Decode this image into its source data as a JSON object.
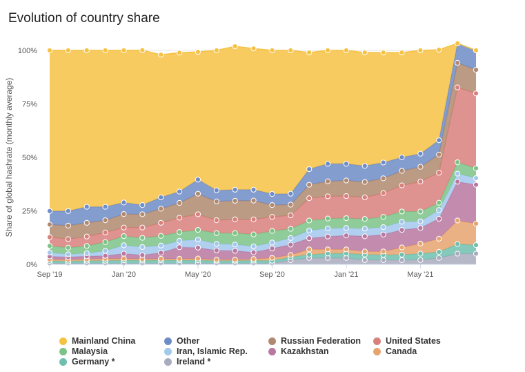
{
  "title": "Evolution of country share",
  "chart_data": {
    "type": "area",
    "stacked": true,
    "title": "Evolution of country share",
    "ylabel": "Share of global hashrate (monthly average)",
    "xlabel": "",
    "ylim": [
      0,
      100
    ],
    "y_ticks": [
      "0%",
      "25%",
      "50%",
      "75%",
      "100%"
    ],
    "x_ticks": [
      "Sep '19",
      "Jan '20",
      "May '20",
      "Sep '20",
      "Jan '21",
      "May '21"
    ],
    "x": [
      "2019-09",
      "2019-10",
      "2019-11",
      "2019-12",
      "2020-01",
      "2020-02",
      "2020-03",
      "2020-04",
      "2020-05",
      "2020-06",
      "2020-07",
      "2020-08",
      "2020-09",
      "2020-10",
      "2020-11",
      "2020-12",
      "2021-01",
      "2021-02",
      "2021-03",
      "2021-04",
      "2021-05",
      "2021-06",
      "2021-07",
      "2021-08"
    ],
    "grid": true,
    "legend_position": "bottom",
    "series": [
      {
        "name": "Ireland *",
        "color": "#a9abbe",
        "values": [
          0.5,
          0.5,
          0.5,
          0.5,
          0.5,
          0.5,
          0.5,
          0.5,
          0.5,
          0.5,
          0.5,
          0.5,
          0.5,
          2,
          3,
          3,
          3,
          2,
          2,
          2,
          2,
          3,
          5,
          5
        ]
      },
      {
        "name": "Germany *",
        "color": "#6fbfae",
        "values": [
          1.1,
          0.9,
          1.2,
          1.2,
          1.4,
          1.3,
          1.4,
          1.4,
          1.4,
          1.2,
          1.2,
          1.3,
          1.2,
          1.4,
          1.5,
          2.1,
          2.1,
          2.6,
          2.4,
          2.5,
          3,
          2.8,
          4.5,
          4
        ]
      },
      {
        "name": "Canada",
        "color": "#e6a46f",
        "values": [
          0.7,
          0.7,
          0.7,
          0.9,
          0.8,
          0.7,
          0.7,
          0.7,
          0.8,
          0.5,
          0.5,
          0.7,
          1.3,
          1.0,
          2.5,
          1.9,
          1.9,
          1.4,
          1.6,
          3.4,
          4.7,
          6.2,
          11,
          10
        ]
      },
      {
        "name": "Kazakhstan",
        "color": "#b878a1",
        "values": [
          1.4,
          1.3,
          1.4,
          1.4,
          2.3,
          1.8,
          2.8,
          5.4,
          5.1,
          4.3,
          4.1,
          3.1,
          4.4,
          4.8,
          5.2,
          6.0,
          6.5,
          7.1,
          7.9,
          8.2,
          7.3,
          9.3,
          18.1,
          18.2
        ]
      },
      {
        "name": "Iran, Islamic Rep.",
        "color": "#a3c8ec",
        "values": [
          1.8,
          1.3,
          1.4,
          2.3,
          3.9,
          3.8,
          3.4,
          3.0,
          3.8,
          3.1,
          3.0,
          2.8,
          2.8,
          3.1,
          3.6,
          3.8,
          3.5,
          3.6,
          3.5,
          3.8,
          3.1,
          4.1,
          3.8,
          3.1
        ]
      },
      {
        "name": "Malaysia",
        "color": "#7cc387",
        "values": [
          3.1,
          3.1,
          3.4,
          4.1,
          4.3,
          4.3,
          4.5,
          4.1,
          4.5,
          5.0,
          5.3,
          5.6,
          5.4,
          4.3,
          4.7,
          4.6,
          4.6,
          4.5,
          4.8,
          4.8,
          4.6,
          3.4,
          5.3,
          4.6
        ]
      },
      {
        "name": "United States",
        "color": "#d9807c",
        "values": [
          4.1,
          4.0,
          4.4,
          4.5,
          4.0,
          4.8,
          6.1,
          6.7,
          7.3,
          6.0,
          6.4,
          7.0,
          6.6,
          6.3,
          10.4,
          10.4,
          10.3,
          10.1,
          11.1,
          12.2,
          14,
          14,
          35,
          35
        ]
      },
      {
        "name": "Russian Federation",
        "color": "#b08970",
        "values": [
          5.9,
          6.3,
          6.4,
          5.7,
          6.3,
          6.2,
          6.6,
          6.9,
          9.6,
          8.8,
          8.7,
          8.8,
          5.5,
          5.0,
          6.3,
          7.0,
          7.3,
          7.2,
          6.9,
          6.8,
          6.9,
          8.5,
          11.5,
          11
        ]
      },
      {
        "name": "Other",
        "color": "#6e8cc7",
        "values": [
          6.3,
          6.8,
          7.5,
          6.3,
          5.4,
          4.3,
          5.3,
          5.3,
          6.6,
          5.2,
          5.2,
          5.1,
          5.2,
          5.1,
          7.3,
          8.2,
          7.8,
          7.5,
          7.4,
          6.3,
          6.1,
          6.7,
          9.1,
          9.1
        ]
      },
      {
        "name": "Mainland China",
        "color": "#f6c244",
        "values": [
          75.1,
          75.1,
          73.1,
          73.1,
          71.1,
          72.4,
          66.7,
          64.9,
          59.7,
          65.4,
          67.0,
          66.0,
          67.1,
          67.0,
          54.5,
          53.0,
          53.0,
          53.0,
          51.4,
          49.0,
          48.3,
          42.3,
          0,
          0
        ]
      }
    ],
    "legend_order": [
      "Mainland China",
      "Other",
      "Russian Federation",
      "United States",
      "Malaysia",
      "Iran, Islamic Rep.",
      "Kazakhstan",
      "Canada",
      "Germany *",
      "Ireland *"
    ]
  }
}
